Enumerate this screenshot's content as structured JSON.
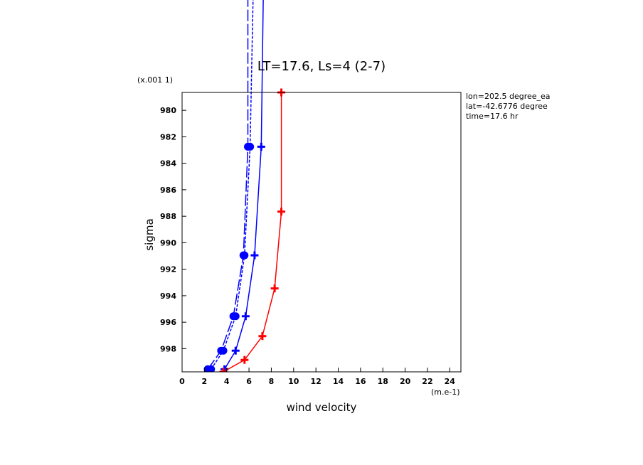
{
  "chart_data": {
    "type": "line",
    "title": "LT=17.6, Ls=4 (2-7)",
    "xlabel": "wind velocity",
    "ylabel": "sigma",
    "x_units_label": "(m.e-1)",
    "y_units_label": "(x.001 1)",
    "xlim": [
      0,
      25
    ],
    "ylim": [
      0.99975,
      0.97865
    ],
    "x_ticks": [
      0,
      2,
      4,
      6,
      8,
      10,
      12,
      14,
      16,
      18,
      20,
      22,
      24
    ],
    "x_tick_labels": [
      "0",
      "2",
      "4",
      "6",
      "8",
      "10",
      "12",
      "14",
      "16",
      "18",
      "20",
      "22",
      "24"
    ],
    "y_ticks": [
      0.98,
      0.982,
      0.984,
      0.986,
      0.988,
      0.99,
      0.992,
      0.994,
      0.996,
      0.998
    ],
    "y_tick_labels": [
      "980",
      "982",
      "984",
      "986",
      "988",
      "990",
      "992",
      "994",
      "996",
      "998"
    ],
    "grid": false,
    "info_lines": [
      "lon=202.5 degree_ea",
      "lat=-42.6776 degree",
      "time=17.6 hr"
    ],
    "series": [
      {
        "color": "#0000ff",
        "line_style": "dashed-long",
        "marker": "circle",
        "x": [
          2.3,
          3.5,
          4.6,
          5.5,
          5.9,
          5.9
        ],
        "y": [
          0.99955,
          0.99815,
          0.99555,
          0.99095,
          0.98275,
          0.97
        ],
        "markers_on": [
          true,
          true,
          true,
          true,
          true,
          false
        ]
      },
      {
        "color": "#0000ff",
        "line_style": "dashed",
        "marker": "circle",
        "x": [
          2.6,
          3.7,
          4.8,
          5.6,
          6.1,
          6.4
        ],
        "y": [
          0.99955,
          0.99815,
          0.99555,
          0.99095,
          0.98275,
          0.97
        ],
        "markers_on": [
          true,
          true,
          true,
          true,
          true,
          false
        ]
      },
      {
        "color": "#0000ff",
        "line_style": "solid",
        "marker": "plus",
        "x": [
          3.8,
          4.8,
          5.7,
          6.5,
          7.1,
          7.3
        ],
        "y": [
          0.99955,
          0.99815,
          0.99555,
          0.99095,
          0.98275,
          0.97
        ],
        "markers_on": [
          true,
          true,
          true,
          true,
          true,
          false
        ]
      },
      {
        "color": "#ff0000",
        "line_style": "solid",
        "marker": "plus",
        "x": [
          3.7,
          5.6,
          7.2,
          8.3,
          8.9,
          8.9
        ],
        "y": [
          0.99975,
          0.99885,
          0.99705,
          0.99345,
          0.98765,
          0.97865
        ],
        "markers_on": [
          true,
          true,
          true,
          true,
          true,
          true
        ]
      }
    ]
  }
}
